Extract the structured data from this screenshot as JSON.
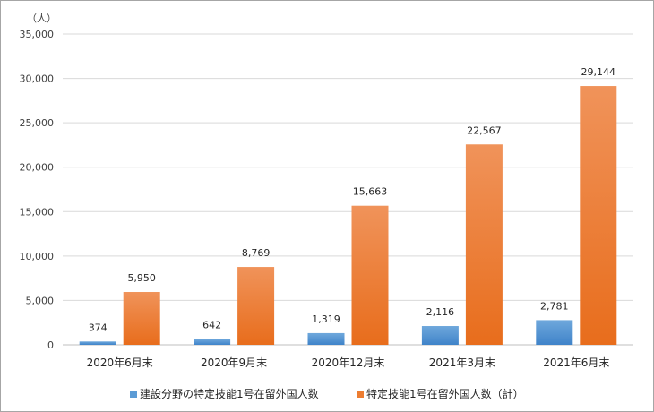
{
  "chart_data": {
    "type": "bar",
    "y_unit_label": "（人）",
    "categories": [
      "2020年6月末",
      "2020年9月末",
      "2020年12月末",
      "2021年3月末",
      "2021年6月末"
    ],
    "series": [
      {
        "name": "建設分野の特定技能1号在留外国人数",
        "values": [
          374,
          642,
          1319,
          2116,
          2781
        ],
        "labels": [
          "374",
          "642",
          "1,319",
          "2,116",
          "2,781"
        ],
        "color": "#5b9bd5"
      },
      {
        "name": "特定技能1号在留外国人数（計）",
        "values": [
          5950,
          8769,
          15663,
          22567,
          29144
        ],
        "labels": [
          "5,950",
          "8,769",
          "15,663",
          "22,567",
          "29,144"
        ],
        "color": "#ed7d31"
      }
    ],
    "ylim": [
      0,
      35000
    ],
    "yticks": [
      0,
      5000,
      10000,
      15000,
      20000,
      25000,
      30000,
      35000
    ],
    "ytick_labels": [
      "0",
      "5,000",
      "10,000",
      "15,000",
      "20,000",
      "25,000",
      "30,000",
      "35,000"
    ],
    "grid": true,
    "legend_position": "bottom"
  }
}
